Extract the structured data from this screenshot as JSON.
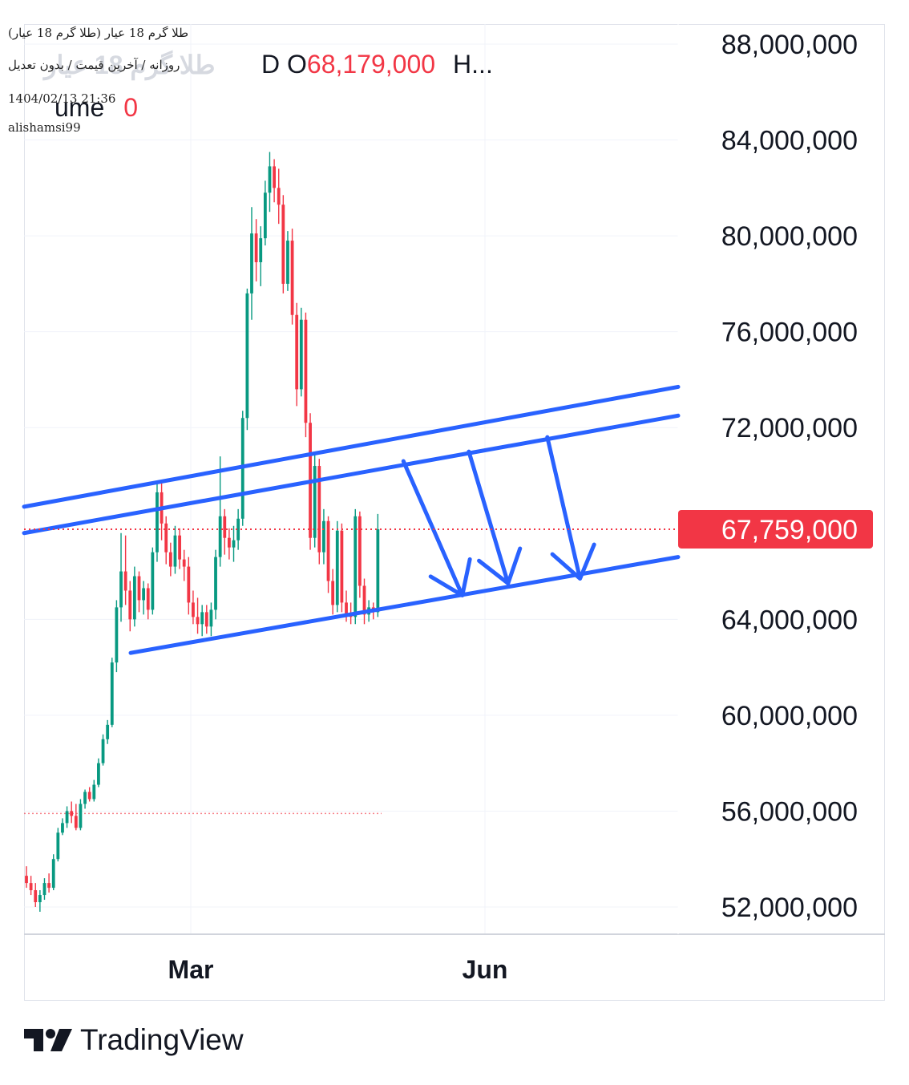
{
  "header": {
    "line1": "(طلا گرم 18 عیار (طلا گرم 18 عیار",
    "line2": "روزانه / آخرین قیمت / بدون تعدیل",
    "line3": "1404/02/13 21:36",
    "line4": "alishamsi99",
    "ghost_title": "طلا گرم 18 عیار",
    "legend_prefix": "D  O",
    "legend_open": "68,179,000",
    "legend_suffix": "H...",
    "volume_label": "ume",
    "volume_value": "0"
  },
  "brand": {
    "name": "TradingView"
  },
  "colors": {
    "up": "#089981",
    "down": "#f23645",
    "trendline": "#2962ff",
    "price_tag": "#f23645"
  },
  "chart_data": {
    "type": "candlestick",
    "y_ticks": [
      "88,000,000",
      "84,000,000",
      "80,000,000",
      "76,000,000",
      "72,000,000",
      "64,000,000",
      "60,000,000",
      "56,000,000",
      "52,000,000"
    ],
    "y_tick_values": [
      88000000,
      84000000,
      80000000,
      76000000,
      72000000,
      64000000,
      60000000,
      56000000,
      52000000
    ],
    "x_ticks": [
      "Mar",
      "Jun"
    ],
    "last_price": 67759000,
    "last_price_label": "67,759,000",
    "prev_close_level": 55900000,
    "trendlines": [
      {
        "name": "upper-channel-outer",
        "points": [
          [
            0,
            68700000
          ],
          [
            1,
            73700000
          ]
        ]
      },
      {
        "name": "upper-channel-inner",
        "points": [
          [
            0,
            67600000
          ],
          [
            1,
            72500000
          ]
        ]
      },
      {
        "name": "lower-channel",
        "points": [
          [
            0.163,
            62600000
          ],
          [
            1,
            66600000
          ]
        ]
      }
    ],
    "arrows": [
      {
        "from": [
          0.58,
          70600000
        ],
        "to": [
          0.67,
          65000000
        ]
      },
      {
        "from": [
          0.68,
          71000000
        ],
        "to": [
          0.74,
          65500000
        ]
      },
      {
        "from": [
          0.8,
          71600000
        ],
        "to": [
          0.85,
          65700000
        ]
      }
    ],
    "candles": [
      [
        53300000,
        53700000,
        52800000,
        53000000
      ],
      [
        53000000,
        53300000,
        52500000,
        52700000
      ],
      [
        52700000,
        53000000,
        52000000,
        52200000
      ],
      [
        52200000,
        52700000,
        51800000,
        52500000
      ],
      [
        52500000,
        53200000,
        52300000,
        53000000
      ],
      [
        53000000,
        53400000,
        52600000,
        52800000
      ],
      [
        52800000,
        54200000,
        52700000,
        54000000
      ],
      [
        54000000,
        55300000,
        53900000,
        55100000
      ],
      [
        55100000,
        55700000,
        55000000,
        55500000
      ],
      [
        55500000,
        56200000,
        55300000,
        56000000
      ],
      [
        56000000,
        56400000,
        55500000,
        55800000
      ],
      [
        55800000,
        56300000,
        55200000,
        55300000
      ],
      [
        55300000,
        56500000,
        55200000,
        56300000
      ],
      [
        56300000,
        56900000,
        56100000,
        56800000
      ],
      [
        56800000,
        57000000,
        56400000,
        56500000
      ],
      [
        56500000,
        57300000,
        56400000,
        57100000
      ],
      [
        57100000,
        58200000,
        57000000,
        58000000
      ],
      [
        58000000,
        59200000,
        57900000,
        59000000
      ],
      [
        59000000,
        59800000,
        58800000,
        59600000
      ],
      [
        59600000,
        62400000,
        59500000,
        62200000
      ],
      [
        62200000,
        64800000,
        61800000,
        64500000
      ],
      [
        64500000,
        67600000,
        63900000,
        66000000
      ],
      [
        66000000,
        67500000,
        64600000,
        65200000
      ],
      [
        65200000,
        65600000,
        63500000,
        64000000
      ],
      [
        64000000,
        66200000,
        63700000,
        65800000
      ],
      [
        65800000,
        66000000,
        64300000,
        64800000
      ],
      [
        64800000,
        65600000,
        64200000,
        65300000
      ],
      [
        65300000,
        65500000,
        64000000,
        64400000
      ],
      [
        64400000,
        67000000,
        64200000,
        66800000
      ],
      [
        66800000,
        69700000,
        66400000,
        69300000
      ],
      [
        69300000,
        69800000,
        67300000,
        68000000
      ],
      [
        68000000,
        68300000,
        66300000,
        66800000
      ],
      [
        66800000,
        67200000,
        65800000,
        66200000
      ],
      [
        66200000,
        67900000,
        65900000,
        67500000
      ],
      [
        67500000,
        67800000,
        66100000,
        66500000
      ],
      [
        66500000,
        66900000,
        65600000,
        66200000
      ],
      [
        66200000,
        66600000,
        64200000,
        64700000
      ],
      [
        64700000,
        65200000,
        63800000,
        64100000
      ],
      [
        64100000,
        64900000,
        63400000,
        63800000
      ],
      [
        63800000,
        64600000,
        63300000,
        64300000
      ],
      [
        64300000,
        64600000,
        63400000,
        63700000
      ],
      [
        63700000,
        64700000,
        63300000,
        64400000
      ],
      [
        64400000,
        66900000,
        64000000,
        66600000
      ],
      [
        66600000,
        70800000,
        66200000,
        68300000
      ],
      [
        68300000,
        68600000,
        66700000,
        67400000
      ],
      [
        67400000,
        67800000,
        66500000,
        67000000
      ],
      [
        67000000,
        67900000,
        66400000,
        67300000
      ],
      [
        67300000,
        68600000,
        66900000,
        68200000
      ],
      [
        68200000,
        72700000,
        67900000,
        72400000
      ],
      [
        72400000,
        77800000,
        71900000,
        77600000
      ],
      [
        77600000,
        81200000,
        76500000,
        80100000
      ],
      [
        80100000,
        80700000,
        78100000,
        78900000
      ],
      [
        78900000,
        80400000,
        77900000,
        79900000
      ],
      [
        79900000,
        82300000,
        79600000,
        81800000
      ],
      [
        81800000,
        83500000,
        81000000,
        82900000
      ],
      [
        82900000,
        83200000,
        81400000,
        82000000
      ],
      [
        82000000,
        82800000,
        80500000,
        81300000
      ],
      [
        81300000,
        81700000,
        77600000,
        78000000
      ],
      [
        78000000,
        80200000,
        77700000,
        79800000
      ],
      [
        79800000,
        80300000,
        76300000,
        76700000
      ],
      [
        76700000,
        77200000,
        72900000,
        73600000
      ],
      [
        73600000,
        77000000,
        73300000,
        76500000
      ],
      [
        76500000,
        76800000,
        71600000,
        72200000
      ],
      [
        72200000,
        72600000,
        66900000,
        67400000
      ],
      [
        67400000,
        70900000,
        67000000,
        70400000
      ],
      [
        70400000,
        70700000,
        66300000,
        66800000
      ],
      [
        66800000,
        68600000,
        66300000,
        68100000
      ],
      [
        68100000,
        68300000,
        65100000,
        65600000
      ],
      [
        65600000,
        66100000,
        64200000,
        64600000
      ],
      [
        64600000,
        68100000,
        64300000,
        67700000
      ],
      [
        67700000,
        68000000,
        64300000,
        64700000
      ],
      [
        64700000,
        65200000,
        63900000,
        64200000
      ],
      [
        64200000,
        64700000,
        63800000,
        64100000
      ],
      [
        64100000,
        68600000,
        63800000,
        68300000
      ],
      [
        68300000,
        68500000,
        64900000,
        65400000
      ],
      [
        65400000,
        65700000,
        63800000,
        64200000
      ],
      [
        64200000,
        64800000,
        63900000,
        64500000
      ],
      [
        64500000,
        64700000,
        64000000,
        64300000
      ],
      [
        64300000,
        68400000,
        64100000,
        67759000
      ]
    ]
  }
}
